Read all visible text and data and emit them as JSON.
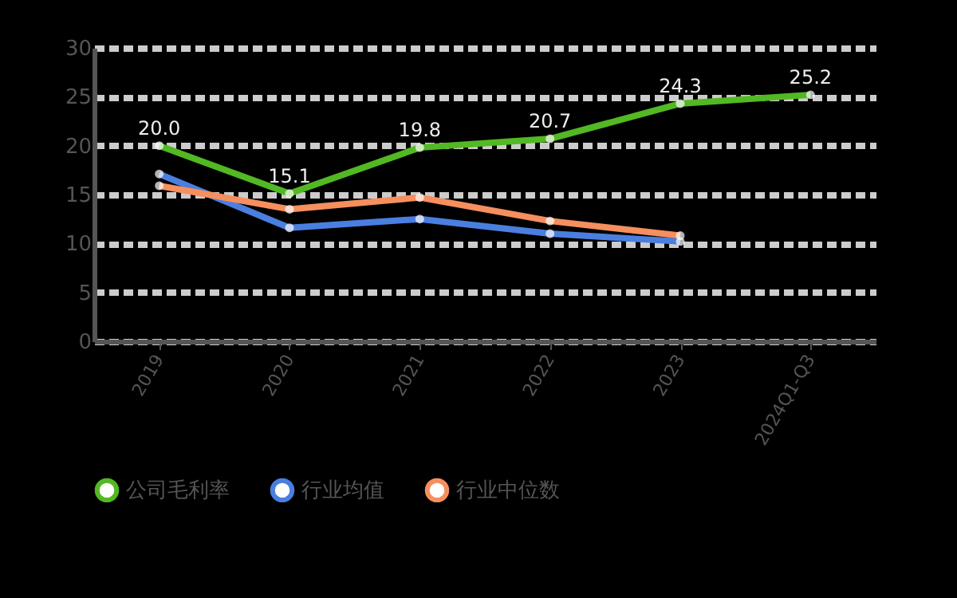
{
  "chart_data": {
    "type": "line",
    "categories": [
      "2019",
      "2020",
      "2021",
      "2022",
      "2023",
      "2024Q1-Q3"
    ],
    "series": [
      {
        "name": "公司毛利率",
        "color": "#52b823",
        "values": [
          20.0,
          15.1,
          19.8,
          20.7,
          24.3,
          25.2
        ],
        "value_labels": [
          "20.0",
          "15.1",
          "19.8",
          "20.7",
          "24.3",
          "25.2"
        ]
      },
      {
        "name": "行业均值",
        "color": "#4a7fe0",
        "values": [
          17.1,
          11.6,
          12.5,
          11.0,
          10.2,
          null
        ]
      },
      {
        "name": "行业中位数",
        "color": "#f58f5e",
        "values": [
          15.9,
          13.5,
          14.7,
          12.3,
          10.8,
          null
        ]
      }
    ],
    "ylim": [
      0,
      30
    ],
    "yticks": [
      0,
      5,
      10,
      15,
      20,
      25,
      30
    ],
    "grid": "y",
    "legend": "bottom",
    "marker": "circle",
    "line_style": "solid"
  }
}
